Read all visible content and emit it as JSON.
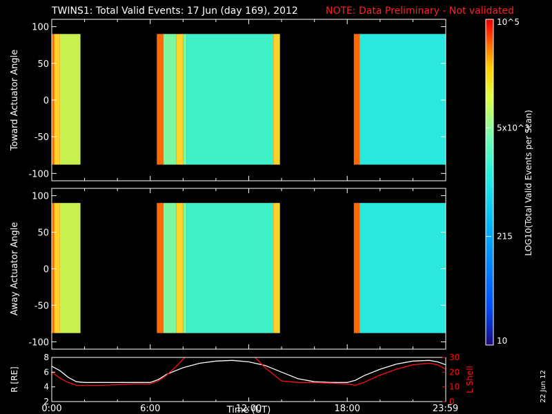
{
  "header": {
    "title": "TWINS1: Total Valid Events: 17 Jun (day 169), 2012",
    "note": "NOTE: Data Preliminary - Not validated"
  },
  "footer": {
    "date_stamp": "22 Jun 12"
  },
  "colorbar": {
    "label": "LOG10(Total Valid Events per Scan)",
    "ticks": [
      "10",
      "215",
      "5x10^3",
      "10^5"
    ],
    "colors": [
      "#1a0a80",
      "#0050ff",
      "#00b0ff",
      "#20f0e0",
      "#70ffb0",
      "#e0ff40",
      "#ffd000",
      "#ff7000",
      "#ff2000",
      "#e00000"
    ]
  },
  "chart_data": [
    {
      "type": "heatmap",
      "panel": "toward",
      "ylabel": "Toward Actuator Angle",
      "xlim_hours": [
        0,
        24
      ],
      "ylim": [
        -110,
        110
      ],
      "yticks": [
        100,
        50,
        0,
        -50,
        -100
      ],
      "angle_range": [
        -88,
        90
      ],
      "data_blocks_hours": [
        [
          0.0,
          1.75
        ],
        [
          6.4,
          13.9
        ],
        [
          18.4,
          24.0
        ]
      ],
      "bands_hours": [
        {
          "start": 0.0,
          "end": 0.15,
          "level": "high"
        },
        {
          "start": 0.15,
          "end": 0.5,
          "level": "mid-high"
        },
        {
          "start": 0.5,
          "end": 1.75,
          "level": "mid"
        },
        {
          "start": 6.4,
          "end": 6.8,
          "level": "high"
        },
        {
          "start": 6.8,
          "end": 7.6,
          "level": "mid-low"
        },
        {
          "start": 7.6,
          "end": 8.0,
          "level": "mid-high"
        },
        {
          "start": 8.0,
          "end": 8.2,
          "level": "mid-low"
        },
        {
          "start": 8.2,
          "end": 13.5,
          "level": "low-mid"
        },
        {
          "start": 13.5,
          "end": 13.9,
          "level": "mid-high"
        },
        {
          "start": 18.4,
          "end": 18.75,
          "level": "high"
        },
        {
          "start": 18.75,
          "end": 24.0,
          "level": "low"
        }
      ]
    },
    {
      "type": "heatmap",
      "panel": "away",
      "ylabel": "Away Actuator Angle",
      "xlim_hours": [
        0,
        24
      ],
      "ylim": [
        -110,
        110
      ],
      "yticks": [
        100,
        50,
        0,
        -50,
        -100
      ],
      "angle_range": [
        -88,
        90
      ],
      "data_blocks_hours": [
        [
          0.0,
          1.75
        ],
        [
          6.4,
          13.9
        ],
        [
          18.4,
          24.0
        ]
      ],
      "bands_hours": [
        {
          "start": 0.0,
          "end": 0.15,
          "level": "high"
        },
        {
          "start": 0.15,
          "end": 0.5,
          "level": "mid-high"
        },
        {
          "start": 0.5,
          "end": 1.75,
          "level": "mid"
        },
        {
          "start": 6.4,
          "end": 6.8,
          "level": "high"
        },
        {
          "start": 6.8,
          "end": 7.6,
          "level": "mid-low"
        },
        {
          "start": 7.6,
          "end": 8.0,
          "level": "mid-high"
        },
        {
          "start": 8.0,
          "end": 8.2,
          "level": "mid-low"
        },
        {
          "start": 8.2,
          "end": 13.5,
          "level": "low-mid"
        },
        {
          "start": 13.5,
          "end": 13.9,
          "level": "mid-high"
        },
        {
          "start": 18.4,
          "end": 18.75,
          "level": "high"
        },
        {
          "start": 18.75,
          "end": 24.0,
          "level": "low"
        }
      ]
    },
    {
      "type": "line",
      "panel": "orbit",
      "xlabel": "Time (UT)",
      "ylabel_left": "R [RE]",
      "ylabel_right": "L Shell",
      "xlim_hours": [
        0,
        24
      ],
      "xticks": [
        {
          "hour": 0,
          "label": "0:00"
        },
        {
          "hour": 6,
          "label": "6:00"
        },
        {
          "hour": 12,
          "label": "12:00"
        },
        {
          "hour": 18,
          "label": "18:00"
        },
        {
          "hour": 23.983,
          "label": "23:59"
        }
      ],
      "ylim_left": [
        2,
        8
      ],
      "yticks_left": [
        8,
        6,
        4,
        2
      ],
      "ylim_right": [
        0,
        30
      ],
      "yticks_right": [
        30,
        20,
        10,
        0
      ],
      "series": [
        {
          "name": "R",
          "axis": "left",
          "color": "#ffffff",
          "x": [
            0,
            0.5,
            1.0,
            1.5,
            2,
            3,
            4,
            5,
            6,
            6.5,
            7,
            8,
            9,
            10,
            11,
            12,
            13,
            14,
            15,
            16,
            17,
            18,
            18.5,
            19,
            20,
            21,
            22,
            23,
            23.5,
            24
          ],
          "y": [
            6.8,
            6.2,
            5.3,
            4.7,
            4.6,
            4.6,
            4.6,
            4.6,
            4.6,
            5.0,
            5.7,
            6.6,
            7.2,
            7.5,
            7.6,
            7.4,
            6.9,
            6.0,
            5.1,
            4.7,
            4.6,
            4.6,
            4.9,
            5.5,
            6.4,
            7.1,
            7.5,
            7.6,
            7.4,
            7.0
          ]
        },
        {
          "name": "L Shell",
          "axis": "right",
          "color": "#ff1010",
          "x": [
            0,
            0.5,
            1.0,
            1.5,
            2,
            3,
            4,
            5,
            6,
            6.5,
            7,
            7.5,
            8.2,
            12.3,
            13,
            14,
            15,
            16,
            17,
            18,
            18.5,
            19,
            20,
            21,
            22,
            23,
            23.5,
            24
          ],
          "y": [
            20,
            16,
            13,
            11,
            11,
            11,
            11.5,
            12,
            12,
            14,
            18,
            23,
            31,
            31,
            23,
            14,
            13,
            13,
            12.5,
            12,
            11,
            13,
            18,
            22,
            25,
            26,
            25,
            22
          ]
        }
      ]
    }
  ]
}
